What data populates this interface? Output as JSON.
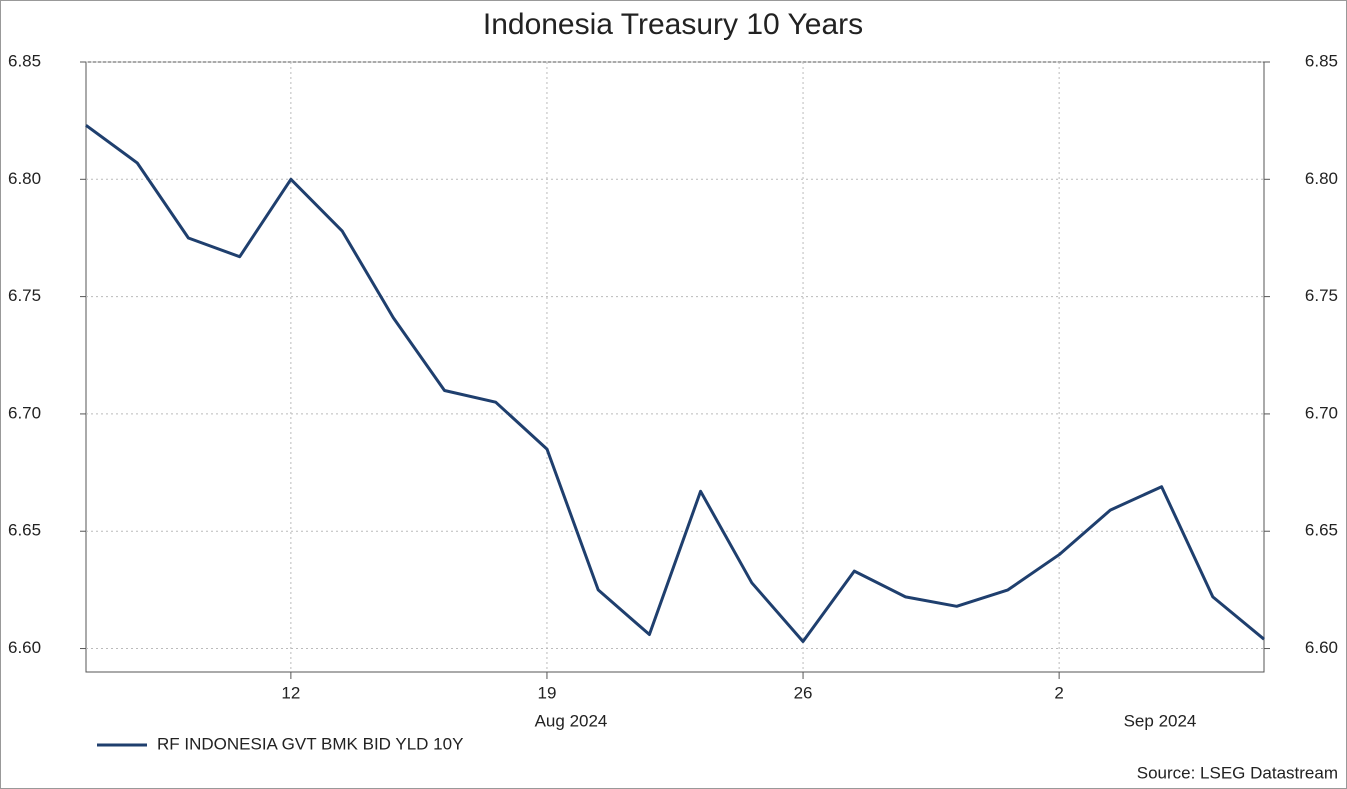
{
  "chart_data": {
    "type": "line",
    "title": "Indonesia Treasury 10 Years",
    "source": "Source: LSEG Datastream",
    "categories": [
      null,
      null,
      null,
      null,
      "12",
      null,
      null,
      null,
      null,
      "19",
      null,
      null,
      null,
      null,
      "26",
      null,
      null,
      null,
      null,
      "2",
      null,
      null,
      null,
      null
    ],
    "x_groups": [
      "Aug 2024",
      "Sep 2024"
    ],
    "series": [
      {
        "name": "RF INDONESIA GVT BMK BID YLD 10Y",
        "color": "#1f3f6e",
        "values": [
          6.823,
          6.807,
          6.775,
          6.767,
          6.8,
          6.778,
          6.741,
          6.71,
          6.705,
          6.685,
          6.625,
          6.606,
          6.667,
          6.628,
          6.603,
          6.633,
          6.622,
          6.618,
          6.625,
          6.64,
          6.659,
          6.669,
          6.622,
          6.604
        ]
      }
    ],
    "ylim": [
      6.59,
      6.85
    ],
    "yticks": [
      {
        "value": 6.6,
        "label": "6.60"
      },
      6.65,
      {
        "value": 6.7,
        "label": "6.70"
      },
      6.75,
      {
        "value": 6.8,
        "label": "6.80"
      },
      6.85
    ],
    "grid": true
  }
}
